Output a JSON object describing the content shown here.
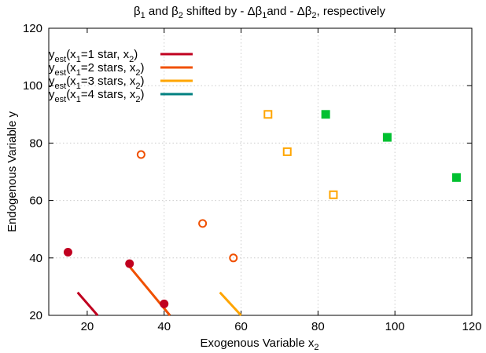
{
  "chart_data": {
    "type": "scatter",
    "title": {
      "pre": "β",
      "sub1": "1",
      "mid": " and β",
      "sub2": "2",
      "post1": " shifted by - Δβ",
      "sub3": "1",
      "post2": "and - Δβ",
      "sub4": "2",
      "post3": ", respectively"
    },
    "xlabel": {
      "main": "Exogenous Variable x",
      "sub": "2"
    },
    "ylabel": "Endogenous Variable y",
    "xlim": [
      10,
      120
    ],
    "ylim": [
      20,
      120
    ],
    "xticks": [
      20,
      40,
      60,
      80,
      100,
      120
    ],
    "yticks": [
      20,
      40,
      60,
      80,
      100,
      120
    ],
    "grid": true,
    "legend_position": "top-left",
    "legend": [
      {
        "y": "y",
        "est": "est",
        "rest": "(x",
        "one": "1",
        "eq": "=1 star,   x",
        "two": "2",
        "close": ")",
        "color": "#c0001f"
      },
      {
        "y": "y",
        "est": "est",
        "rest": "(x",
        "one": "1",
        "eq": "=2 stars, x",
        "two": "2",
        "close": ")",
        "color": "#f05000"
      },
      {
        "y": "y",
        "est": "est",
        "rest": "(x",
        "one": "1",
        "eq": "=3 stars, x",
        "two": "2",
        "close": ")",
        "color": "#ffa500"
      },
      {
        "y": "y",
        "est": "est",
        "rest": "(x",
        "one": "1",
        "eq": "=4 stars, x",
        "two": "2",
        "close": ")",
        "color": "#008080"
      }
    ],
    "series": [
      {
        "marker": "filled-circle",
        "color": "#c0001f",
        "points": [
          [
            15,
            42
          ],
          [
            31,
            38
          ],
          [
            40,
            24
          ]
        ]
      },
      {
        "marker": "open-circle",
        "color": "#f05000",
        "points": [
          [
            34,
            76
          ],
          [
            50,
            52
          ],
          [
            58,
            40
          ]
        ]
      },
      {
        "marker": "open-square",
        "color": "#ffa500",
        "points": [
          [
            67,
            90
          ],
          [
            72,
            77
          ],
          [
            84,
            62
          ]
        ]
      },
      {
        "marker": "filled-square",
        "color": "#00c030",
        "points": [
          [
            82,
            90
          ],
          [
            98,
            82
          ],
          [
            116,
            68
          ]
        ]
      }
    ],
    "lines": [
      {
        "color": "#c0001f",
        "x": [
          17.5,
          22.7
        ],
        "y": [
          28,
          20
        ]
      },
      {
        "color": "#f05000",
        "x": [
          31,
          41.5
        ],
        "y": [
          37,
          20
        ]
      },
      {
        "color": "#ffa500",
        "x": [
          54.5,
          60
        ],
        "y": [
          28,
          20
        ]
      }
    ]
  }
}
